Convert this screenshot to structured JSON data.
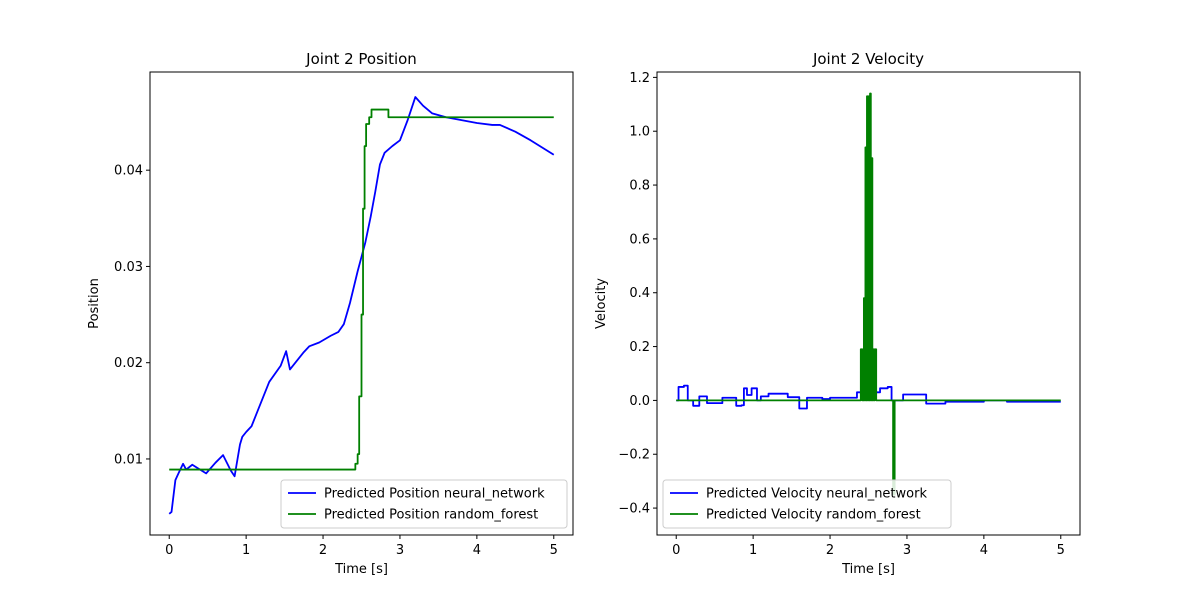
{
  "chart_data": [
    {
      "type": "line",
      "title": "Joint 2 Position",
      "xlabel": "Time [s]",
      "ylabel": "Position",
      "xlim": [
        -0.25,
        5.25
      ],
      "ylim": [
        0.0021,
        0.0502
      ],
      "xticks": [
        0,
        1,
        2,
        3,
        4,
        5
      ],
      "xtick_labels": [
        "0",
        "1",
        "2",
        "3",
        "4",
        "5"
      ],
      "yticks": [
        0.01,
        0.02,
        0.03,
        0.04
      ],
      "ytick_labels": [
        "0.01",
        "0.02",
        "0.03",
        "0.04"
      ],
      "legend_position": "lower-right",
      "series": [
        {
          "name": "Predicted Position neural_network",
          "color": "#0000ff",
          "step": false,
          "x": [
            0.0,
            0.03,
            0.08,
            0.12,
            0.18,
            0.22,
            0.3,
            0.38,
            0.48,
            0.6,
            0.7,
            0.8,
            0.85,
            0.92,
            0.95,
            1.0,
            1.07,
            1.15,
            1.3,
            1.45,
            1.52,
            1.57,
            1.65,
            1.75,
            1.82,
            1.95,
            2.1,
            2.2,
            2.27,
            2.35,
            2.45,
            2.5,
            2.55,
            2.62,
            2.68,
            2.74,
            2.8,
            2.9,
            3.0,
            3.1,
            3.2,
            3.3,
            3.42,
            3.6,
            3.8,
            4.0,
            4.2,
            4.3,
            4.5,
            4.7,
            5.0
          ],
          "y": [
            0.0043,
            0.0045,
            0.0078,
            0.0085,
            0.0095,
            0.0089,
            0.0094,
            0.009,
            0.0085,
            0.0096,
            0.0104,
            0.0088,
            0.0082,
            0.0115,
            0.0123,
            0.0128,
            0.0134,
            0.015,
            0.018,
            0.0197,
            0.0212,
            0.0193,
            0.0201,
            0.0211,
            0.0217,
            0.0221,
            0.0228,
            0.0232,
            0.024,
            0.0262,
            0.0295,
            0.031,
            0.0325,
            0.0352,
            0.0378,
            0.0406,
            0.0418,
            0.0425,
            0.0431,
            0.0452,
            0.0476,
            0.0467,
            0.0459,
            0.0455,
            0.0452,
            0.0449,
            0.0447,
            0.0447,
            0.044,
            0.0431,
            0.0416
          ]
        },
        {
          "name": "Predicted Position random_forest",
          "color": "#008000",
          "step": true,
          "x": [
            0.0,
            2.4,
            2.42,
            2.45,
            2.47,
            2.5,
            2.52,
            2.54,
            2.56,
            2.6,
            2.63,
            2.66,
            2.7,
            2.75,
            2.82,
            2.85,
            3.0,
            3.5,
            4.0,
            4.5,
            5.0
          ],
          "y": [
            0.0089,
            0.0089,
            0.0095,
            0.0105,
            0.0165,
            0.025,
            0.036,
            0.0425,
            0.0448,
            0.0455,
            0.0463,
            0.0463,
            0.0463,
            0.0463,
            0.0463,
            0.0455,
            0.0455,
            0.0455,
            0.0455,
            0.0455,
            0.0455
          ]
        }
      ]
    },
    {
      "type": "line",
      "title": "Joint 2 Velocity",
      "xlabel": "Time [s]",
      "ylabel": "Velocity",
      "xlim": [
        -0.25,
        5.25
      ],
      "ylim": [
        -0.5,
        1.22
      ],
      "xticks": [
        0,
        1,
        2,
        3,
        4,
        5
      ],
      "xtick_labels": [
        "0",
        "1",
        "2",
        "3",
        "4",
        "5"
      ],
      "yticks": [
        -0.4,
        -0.2,
        0.0,
        0.2,
        0.4,
        0.6,
        0.8,
        1.0,
        1.2
      ],
      "ytick_labels": [
        "−0.4",
        "−0.2",
        "0.0",
        "0.2",
        "0.4",
        "0.6",
        "0.8",
        "1.0",
        "1.2"
      ],
      "legend_position": "lower-left",
      "series": [
        {
          "name": "Predicted Velocity neural_network",
          "color": "#0000ff",
          "step": true,
          "x": [
            0.0,
            0.03,
            0.1,
            0.15,
            0.22,
            0.3,
            0.4,
            0.5,
            0.6,
            0.7,
            0.78,
            0.85,
            0.88,
            0.92,
            0.98,
            1.05,
            1.1,
            1.2,
            1.3,
            1.45,
            1.5,
            1.6,
            1.7,
            1.8,
            1.9,
            2.0,
            2.2,
            2.35,
            2.45,
            2.55,
            2.65,
            2.75,
            2.8,
            2.95,
            3.15,
            3.25,
            3.5,
            4.0,
            4.3,
            4.6,
            5.0
          ],
          "y": [
            0.0,
            0.05,
            0.055,
            0.0,
            -0.02,
            0.015,
            -0.01,
            -0.01,
            0.01,
            0.01,
            -0.02,
            -0.018,
            0.045,
            0.02,
            0.045,
            0.0,
            0.015,
            0.025,
            0.025,
            0.012,
            0.012,
            -0.03,
            0.01,
            0.01,
            0.005,
            0.01,
            0.01,
            0.03,
            0.045,
            0.03,
            0.045,
            0.05,
            0.0,
            0.022,
            0.022,
            -0.012,
            -0.005,
            0.0,
            -0.005,
            -0.005,
            -0.005
          ]
        },
        {
          "name": "Predicted Velocity random_forest",
          "color": "#008000",
          "step": true,
          "x": [
            0.0,
            2.4,
            2.42,
            2.44,
            2.45,
            2.46,
            2.47,
            2.48,
            2.49,
            2.5,
            2.51,
            2.52,
            2.53,
            2.54,
            2.55,
            2.56,
            2.57,
            2.58,
            2.6,
            2.62,
            2.8,
            2.82,
            2.84,
            3.0,
            3.5,
            4.0,
            4.5,
            5.0
          ],
          "y": [
            0.0,
            0.19,
            0.0,
            0.38,
            0.0,
            0.94,
            0.0,
            1.13,
            0.0,
            1.13,
            0.0,
            1.14,
            0.0,
            0.9,
            0.0,
            0.19,
            0.0,
            0.19,
            0.0,
            0.0,
            0.0,
            -0.35,
            0.0,
            0.0,
            0.0,
            0.0,
            0.0,
            0.0
          ]
        }
      ]
    }
  ]
}
